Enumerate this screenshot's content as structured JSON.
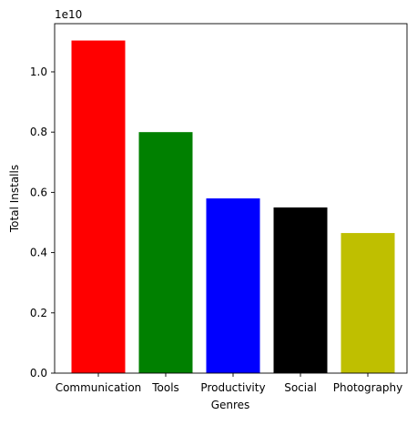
{
  "chart_data": {
    "type": "bar",
    "categories": [
      "Communication",
      "Tools",
      "Productivity",
      "Social",
      "Photography"
    ],
    "values": [
      11.04,
      8.0,
      5.8,
      5.5,
      4.65
    ],
    "value_multiplier_label": "1e10",
    "colors": [
      "#ff0000",
      "#008000",
      "#0000ff",
      "#000000",
      "#bfbf00"
    ],
    "xlabel": "Genres",
    "ylabel": "Total Installs",
    "ylim": [
      0,
      11.6
    ],
    "yticks": [
      "0.0",
      "0.2",
      "0.4",
      "0.6",
      "0.8",
      "1.0"
    ],
    "ytick_values": [
      0,
      2,
      4,
      6,
      8,
      10
    ],
    "grid": false,
    "legend": "none"
  }
}
